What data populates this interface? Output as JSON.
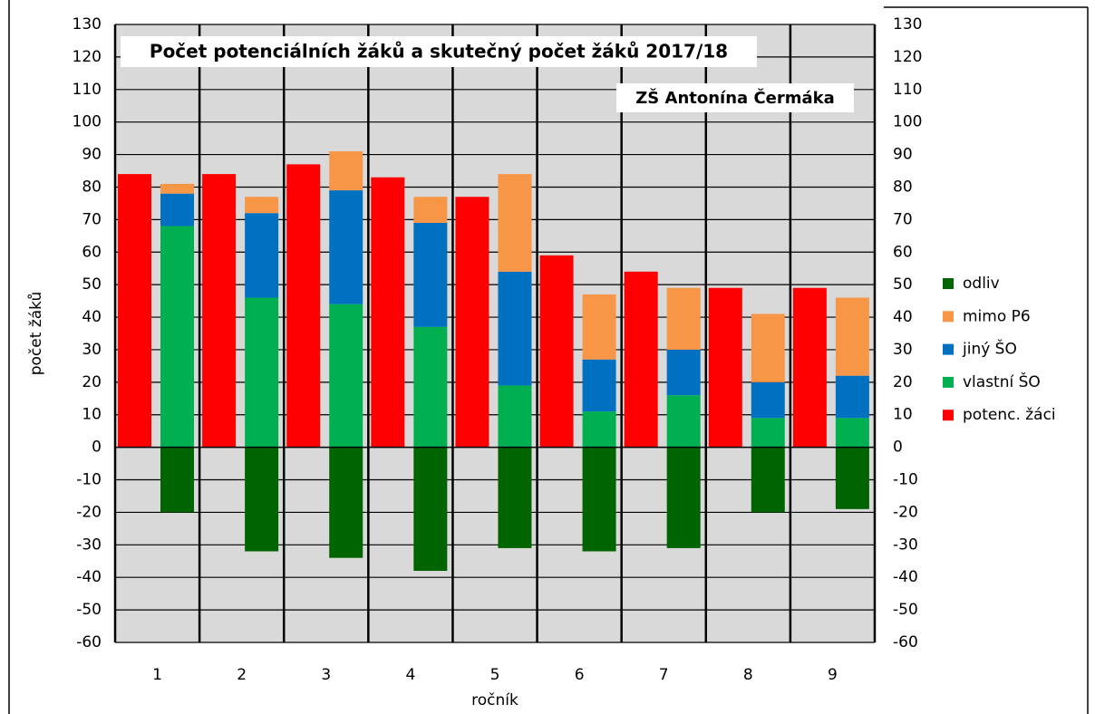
{
  "chart_data": {
    "type": "bar",
    "stacked": true,
    "title": "Počet potenciálních žáků a skutečný počet žáků 2017/18",
    "subtitle": "ZŠ Antonína  Čermáka",
    "x_label": "ročník",
    "y_label": "počet žáků",
    "categories": [
      "1",
      "2",
      "3",
      "4",
      "5",
      "6",
      "7",
      "8",
      "9"
    ],
    "series": [
      {
        "name": "potenc. žáci",
        "color": "#ff0000",
        "values": [
          84,
          84,
          87,
          83,
          77,
          59,
          54,
          49,
          49
        ]
      },
      {
        "name": "vlastní ŠO",
        "color": "#00b050",
        "values": [
          68,
          46,
          44,
          37,
          19,
          11,
          16,
          9,
          9
        ]
      },
      {
        "name": "jiný ŠO",
        "color": "#0070c0",
        "values": [
          10,
          26,
          35,
          32,
          35,
          16,
          14,
          11,
          13
        ]
      },
      {
        "name": "mimo P6",
        "color": "#f79646",
        "values": [
          3,
          5,
          12,
          8,
          30,
          20,
          19,
          21,
          24
        ]
      },
      {
        "name": "odliv",
        "color": "#006400",
        "values": [
          -20,
          -32,
          -34,
          -38,
          -31,
          -32,
          -31,
          -20,
          -19
        ]
      }
    ],
    "ylim": [
      -60,
      130
    ],
    "yticks": [
      -60,
      -50,
      -40,
      -30,
      -20,
      -10,
      0,
      10,
      20,
      30,
      40,
      50,
      60,
      70,
      80,
      90,
      100,
      110,
      120,
      130
    ],
    "y2lim": [
      -60,
      130
    ],
    "y2ticks": [
      -60,
      -50,
      -40,
      -30,
      -20,
      -10,
      0,
      10,
      20,
      30,
      40,
      50,
      60,
      70,
      80,
      90,
      100,
      110,
      120,
      130
    ],
    "grid": true,
    "legend": "right"
  }
}
